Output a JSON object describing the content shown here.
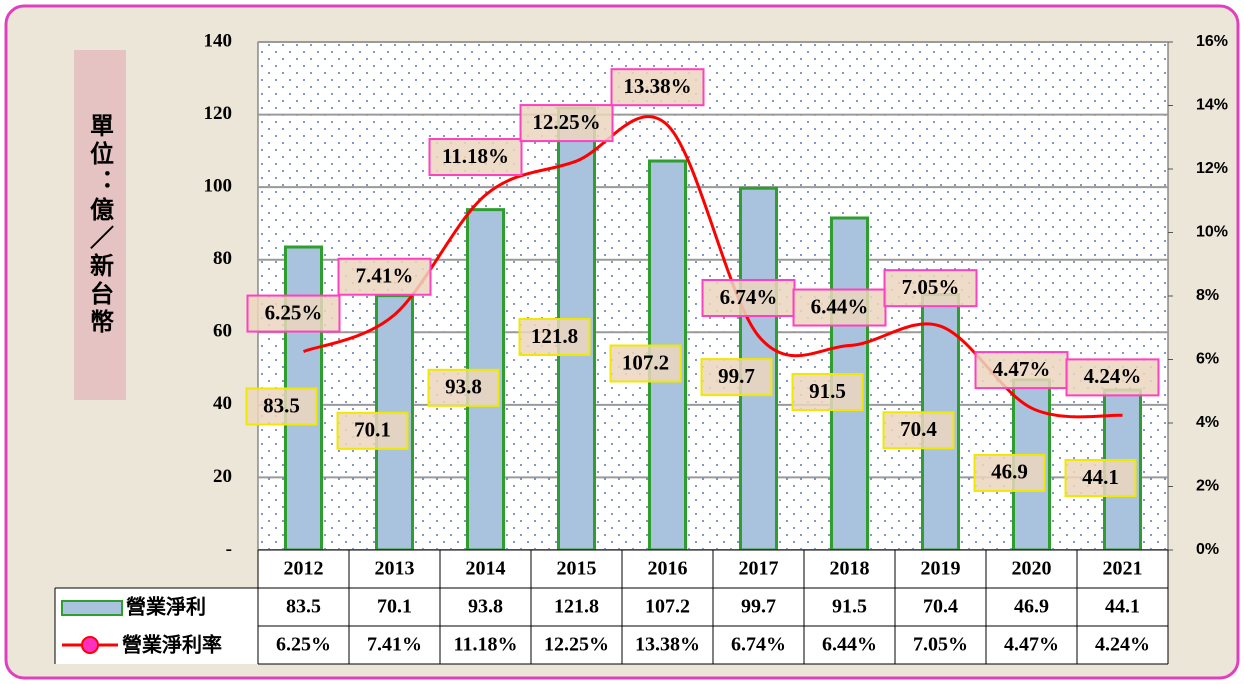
{
  "chart_data": {
    "type": "bar",
    "y_axis_label": "單位：億／新台幣",
    "categories": [
      "2012",
      "2013",
      "2014",
      "2015",
      "2016",
      "2017",
      "2018",
      "2019",
      "2020",
      "2021"
    ],
    "series": [
      {
        "name": "營業淨利",
        "type": "bar",
        "color": "#a9c3df",
        "values": [
          83.5,
          70.1,
          93.8,
          121.8,
          107.2,
          99.7,
          91.5,
          70.4,
          46.9,
          44.1
        ]
      },
      {
        "name": "營業淨利率",
        "type": "line",
        "axis": "y2",
        "color": "#ff0000",
        "values": [
          6.25,
          7.41,
          11.18,
          12.25,
          13.38,
          6.74,
          6.44,
          7.05,
          4.47,
          4.24
        ],
        "value_labels": [
          "6.25%",
          "7.41%",
          "11.18%",
          "12.25%",
          "13.38%",
          "6.74%",
          "6.44%",
          "7.05%",
          "4.47%",
          "4.24%"
        ]
      }
    ],
    "ylim": [
      0,
      140
    ],
    "yticks": [
      {
        "value": 0,
        "label": "-"
      },
      20,
      40,
      60,
      80,
      100,
      120,
      140
    ],
    "y2lim": [
      0,
      16
    ],
    "y2ticks": [
      {
        "value": 0,
        "label": "0%"
      },
      {
        "value": 2,
        "label": "2%"
      },
      {
        "value": 4,
        "label": "4%"
      },
      {
        "value": 6,
        "label": "6%"
      },
      {
        "value": 8,
        "label": "8%"
      },
      {
        "value": 10,
        "label": "10%"
      },
      {
        "value": 12,
        "label": "12%"
      },
      {
        "value": 14,
        "label": "14%"
      },
      {
        "value": 16,
        "label": "16%"
      }
    ],
    "grid": true
  }
}
